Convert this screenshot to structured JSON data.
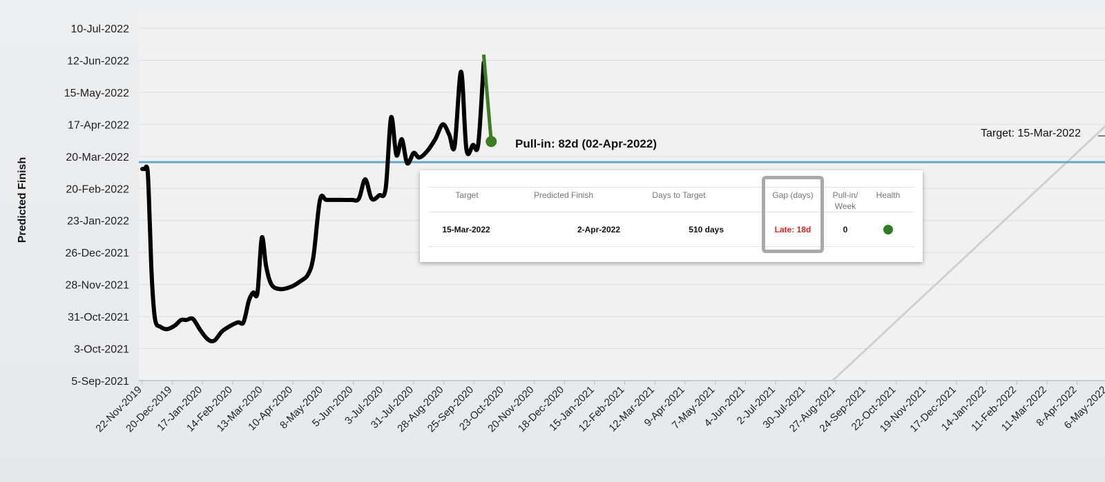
{
  "chart_data": {
    "type": "line",
    "ylabel": "Predicted Finish",
    "xlabel": "",
    "y_ticks": [
      "5-Sep-2021",
      "3-Oct-2021",
      "31-Oct-2021",
      "28-Nov-2021",
      "26-Dec-2021",
      "23-Jan-2022",
      "20-Feb-2022",
      "20-Mar-2022",
      "17-Apr-2022",
      "15-May-2022",
      "12-Jun-2022",
      "10-Jul-2022"
    ],
    "x_ticks": [
      "22-Nov-2019",
      "20-Dec-2019",
      "17-Jan-2020",
      "14-Feb-2020",
      "13-Mar-2020",
      "10-Apr-2020",
      "8-May-2020",
      "5-Jun-2020",
      "3-Jul-2020",
      "31-Jul-2020",
      "28-Aug-2020",
      "25-Sep-2020",
      "23-Oct-2020",
      "20-Nov-2020",
      "18-Dec-2020",
      "15-Jan-2021",
      "12-Feb-2021",
      "12-Mar-2021",
      "9-Apr-2021",
      "7-May-2021",
      "4-Jun-2021",
      "2-Jul-2021",
      "30-Jul-2021",
      "27-Aug-2021",
      "24-Sep-2021",
      "22-Oct-2021",
      "19-Nov-2021",
      "17-Dec-2021",
      "14-Jan-2022",
      "11-Feb-2022",
      "11-Mar-2022",
      "8-Apr-2022",
      "6-May-2022"
    ],
    "ylim": [
      "5-Sep-2021",
      "10-Jul-2022"
    ],
    "grid": true,
    "series": [
      {
        "role": "history",
        "color": "#000000",
        "points": [
          [
            "22-Nov-2019",
            "9-Mar-2022"
          ],
          [
            "24-Nov-2019",
            "9-Mar-2022"
          ],
          [
            "27-Nov-2019",
            "7-Mar-2022"
          ],
          [
            "29-Nov-2019",
            "20-Jan-2022"
          ],
          [
            "1-Dec-2019",
            "1-Dec-2021"
          ],
          [
            "4-Dec-2019",
            "28-Oct-2021"
          ],
          [
            "9-Dec-2019",
            "22-Oct-2021"
          ],
          [
            "15-Dec-2019",
            "20-Oct-2021"
          ],
          [
            "22-Dec-2019",
            "23-Oct-2021"
          ],
          [
            "28-Dec-2019",
            "28-Oct-2021"
          ],
          [
            "2-Jan-2020",
            "28-Oct-2021"
          ],
          [
            "8-Jan-2020",
            "29-Oct-2021"
          ],
          [
            "15-Jan-2020",
            "19-Oct-2021"
          ],
          [
            "22-Jan-2020",
            "11-Oct-2021"
          ],
          [
            "28-Jan-2020",
            "10-Oct-2021"
          ],
          [
            "4-Feb-2020",
            "18-Oct-2021"
          ],
          [
            "12-Feb-2020",
            "23-Oct-2021"
          ],
          [
            "19-Feb-2020",
            "26-Oct-2021"
          ],
          [
            "24-Feb-2020",
            "26-Oct-2021"
          ],
          [
            "29-Feb-2020",
            "14-Nov-2021"
          ],
          [
            "4-Mar-2020",
            "21-Nov-2021"
          ],
          [
            "8-Mar-2020",
            "21-Nov-2021"
          ],
          [
            "12-Mar-2020",
            "8-Jan-2022"
          ],
          [
            "16-Mar-2020",
            "14-Dec-2021"
          ],
          [
            "21-Mar-2020",
            "28-Nov-2021"
          ],
          [
            "29-Mar-2020",
            "24-Nov-2021"
          ],
          [
            "8-Apr-2020",
            "26-Nov-2021"
          ],
          [
            "17-Apr-2020",
            "1-Dec-2021"
          ],
          [
            "24-Apr-2020",
            "7-Dec-2021"
          ],
          [
            "29-Apr-2020",
            "23-Dec-2021"
          ],
          [
            "5-May-2020",
            "10-Feb-2022"
          ],
          [
            "11-May-2020",
            "10-Feb-2022"
          ],
          [
            "21-May-2020",
            "10-Feb-2022"
          ],
          [
            "3-Jun-2020",
            "10-Feb-2022"
          ],
          [
            "10-Jun-2020",
            "11-Feb-2022"
          ],
          [
            "16-Jun-2020",
            "28-Feb-2022"
          ],
          [
            "22-Jun-2020",
            "11-Feb-2022"
          ],
          [
            "29-Jun-2020",
            "14-Feb-2022"
          ],
          [
            "5-Jul-2020",
            "20-Feb-2022"
          ],
          [
            "10-Jul-2020",
            "23-Apr-2022"
          ],
          [
            "15-Jul-2020",
            "21-Mar-2022"
          ],
          [
            "20-Jul-2020",
            "4-Apr-2022"
          ],
          [
            "25-Jul-2020",
            "14-Mar-2022"
          ],
          [
            "31-Jul-2020",
            "23-Mar-2022"
          ],
          [
            "5-Aug-2020",
            "19-Mar-2022"
          ],
          [
            "12-Aug-2020",
            "24-Mar-2022"
          ],
          [
            "20-Aug-2020",
            "4-Apr-2022"
          ],
          [
            "27-Aug-2020",
            "17-Apr-2022"
          ],
          [
            "2-Sep-2020",
            "8-Apr-2022"
          ],
          [
            "7-Sep-2020",
            "29-Mar-2022"
          ],
          [
            "13-Sep-2020",
            "2-Jun-2022"
          ],
          [
            "18-Sep-2020",
            "26-Mar-2022"
          ],
          [
            "24-Sep-2020",
            "30-Mar-2022"
          ],
          [
            "29-Sep-2020",
            "31-Mar-2022"
          ],
          [
            "4-Oct-2020",
            "10-Jun-2022"
          ]
        ]
      },
      {
        "role": "projection",
        "color": "#3b7d23",
        "points": [
          [
            "4-Oct-2020",
            "17-Jun-2022"
          ],
          [
            "11-Oct-2020",
            "2-Apr-2022"
          ]
        ]
      }
    ],
    "target_line": {
      "date": "15-Mar-2022",
      "color": "#66a8c6"
    },
    "ideal_line": {
      "from": [
        "24-Aug-2021",
        "5-Sep-2021"
      ],
      "to": [
        "6-May-2022",
        "17-Apr-2022"
      ],
      "color": "#d0d0d0"
    },
    "annotations": {
      "pull_in": "Pull-in: 82d (02-Apr-2022)",
      "target": "Target: 15-Mar-2022"
    }
  },
  "table": {
    "headers": {
      "target": "Target",
      "predicted": "Predicted Finish",
      "days": "Days to Target",
      "gap": "Gap (days)",
      "pullin_1": "Pull-in/",
      "pullin_2": "Week",
      "health": "Health"
    },
    "row": {
      "target": "15-Mar-2022",
      "predicted": "2-Apr-2022",
      "days": "510 days",
      "gap": "Late: 18d",
      "pullin": "0",
      "health_color": "#2e7d22"
    },
    "gap_color": "#e0241b"
  }
}
